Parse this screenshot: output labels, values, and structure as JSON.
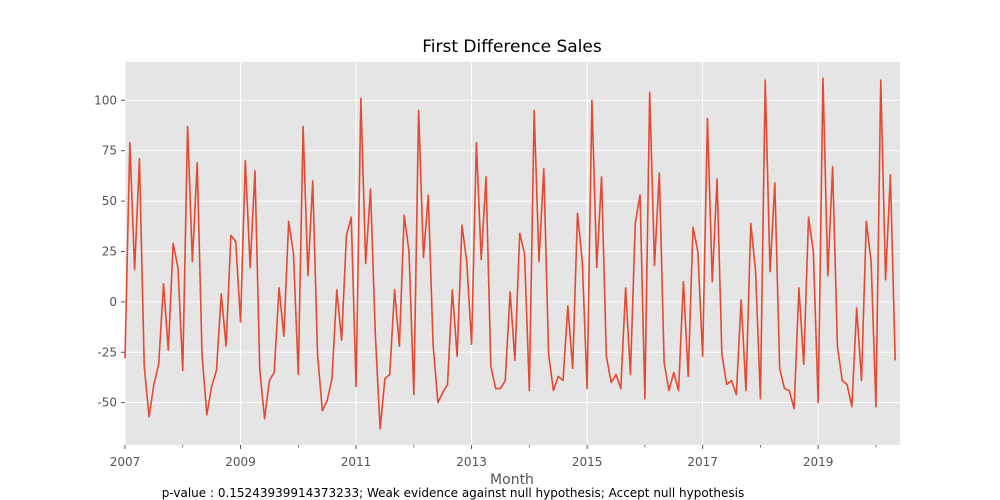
{
  "chart_data": {
    "type": "line",
    "title": "First Difference Sales",
    "xlabel": "Month",
    "ylabel": "",
    "footnote": "p-value : 0.15243939914373233; Weak evidence against null hypothesis; Accept null hypothesis",
    "x_start": "2007-01",
    "x_frequency": "monthly",
    "xlim": [
      "2007-01",
      "2020-06"
    ],
    "ylim": [
      -71,
      119
    ],
    "x_ticks": [
      "2007",
      "2009",
      "2011",
      "2013",
      "2015",
      "2017",
      "2019"
    ],
    "y_ticks": [
      -50,
      -25,
      0,
      25,
      50,
      75,
      100
    ],
    "grid": true,
    "background": "#e5e5e5",
    "line_color": "#e24a33",
    "series": [
      {
        "values": [
          -28,
          79,
          16,
          71,
          -32,
          -57,
          -41,
          -31,
          9,
          -24,
          29,
          17,
          -34,
          87,
          20,
          69,
          -26,
          -56,
          -42,
          -34,
          4,
          -22,
          33,
          30,
          -10,
          70,
          17,
          65,
          -34,
          -58,
          -39,
          -35,
          7,
          -17,
          40,
          24,
          -36,
          87,
          13,
          60,
          -26,
          -54,
          -49,
          -38,
          6,
          -19,
          33,
          42,
          -42,
          101,
          19,
          56,
          -16,
          -63,
          -38,
          -36,
          6,
          -22,
          43,
          25,
          -46,
          95,
          22,
          53,
          -21,
          -50,
          -45,
          -41,
          6,
          -27,
          38,
          20,
          -21,
          79,
          21,
          62,
          -32,
          -43,
          -43,
          -39,
          5,
          -29,
          34,
          24,
          -44,
          95,
          20,
          66,
          -26,
          -44,
          -37,
          -39,
          -2,
          -33,
          44,
          20,
          -43,
          100,
          17,
          62,
          -27,
          -40,
          -36,
          -43,
          7,
          -36,
          39,
          53,
          -48,
          104,
          18,
          64,
          -30,
          -44,
          -35,
          -44,
          10,
          -37,
          37,
          25,
          -27,
          91,
          10,
          61,
          -26,
          -41,
          -39,
          -46,
          1,
          -44,
          39,
          15,
          -48,
          110,
          15,
          59,
          -33,
          -43,
          -44,
          -53,
          7,
          -31,
          42,
          25,
          -50,
          111,
          13,
          67,
          -22,
          -39,
          -41,
          -52,
          -3,
          -39,
          40,
          20,
          -52,
          110,
          11,
          63,
          -29
        ]
      }
    ]
  }
}
